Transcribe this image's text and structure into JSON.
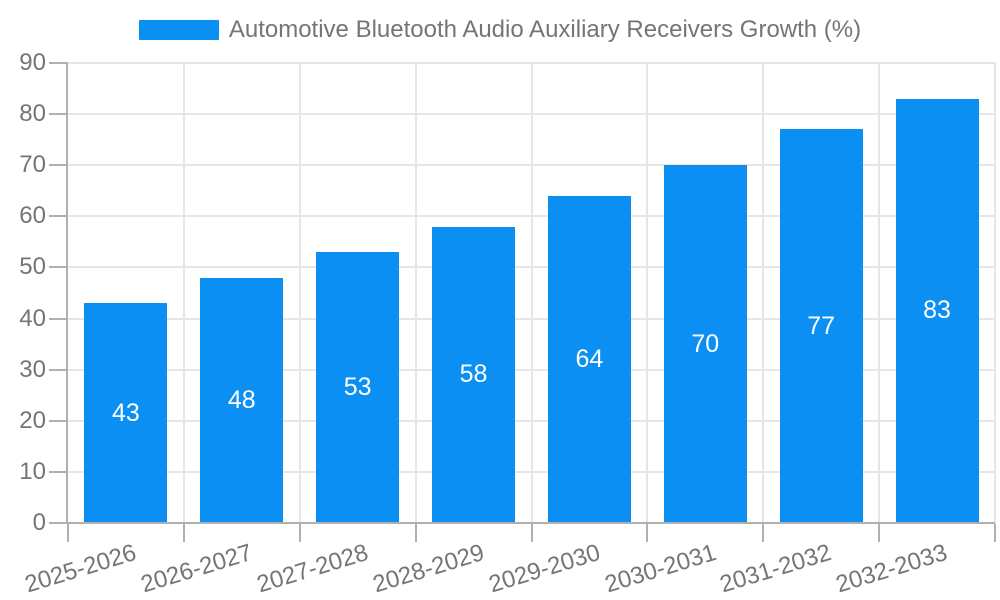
{
  "chart_data": {
    "type": "bar",
    "title": "Automotive Bluetooth Audio Auxiliary Receivers Growth (%)",
    "categories": [
      "2025-2026",
      "2026-2027",
      "2027-2028",
      "2028-2029",
      "2029-2030",
      "2030-2031",
      "2031-2032",
      "2032-2033"
    ],
    "values": [
      43,
      48,
      53,
      58,
      64,
      70,
      77,
      83
    ],
    "series": [
      {
        "name": "Automotive Bluetooth Audio Auxiliary Receivers Growth (%)",
        "values": [
          43,
          48,
          53,
          58,
          64,
          70,
          77,
          83
        ]
      }
    ],
    "xlabel": "",
    "ylabel": "",
    "ylim": [
      0,
      90
    ],
    "yticks": [
      0,
      10,
      20,
      30,
      40,
      50,
      60,
      70,
      80,
      90
    ],
    "grid": true,
    "legend_position": "top",
    "value_labels_inside_bars": true,
    "colors": {
      "bar": "#0b8ff2",
      "axis_line": "#b0b0b0",
      "gridline": "#e6e6e6",
      "tick_label": "#757575",
      "legend_text": "#757575",
      "value_label": "#ffffff",
      "background": "#ffffff"
    }
  }
}
